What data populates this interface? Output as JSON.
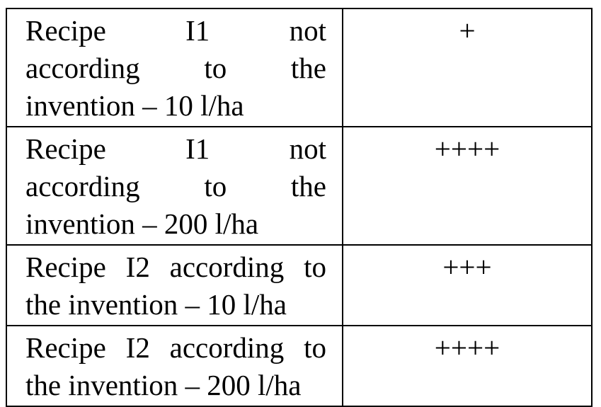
{
  "table": {
    "rows": [
      {
        "recipe_lines": [
          "Recipe I1 not",
          "according to the",
          "invention – 10 l/ha"
        ],
        "justified_lines": 2,
        "rating": "+"
      },
      {
        "recipe_lines": [
          "Recipe I1 not",
          "according to the",
          "invention – 200 l/ha"
        ],
        "justified_lines": 2,
        "rating": "++++"
      },
      {
        "recipe_lines": [
          "Recipe I2 according to",
          "the invention – 10 l/ha"
        ],
        "justified_lines": 1,
        "rating": "+++"
      },
      {
        "recipe_lines": [
          "Recipe I2 according to",
          "the invention – 200 l/ha"
        ],
        "justified_lines": 1,
        "rating": "++++"
      }
    ]
  }
}
